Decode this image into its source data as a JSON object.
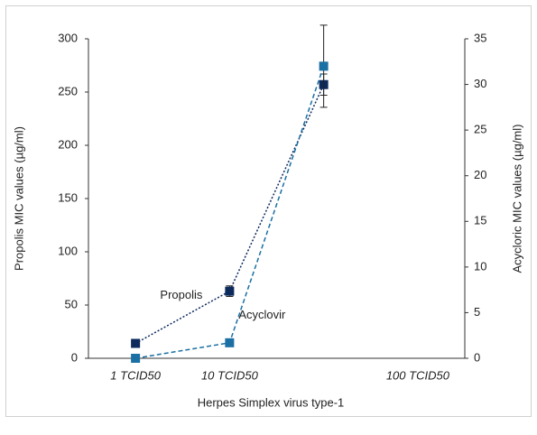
{
  "chart_data": {
    "type": "line",
    "x_label": "Herpes Simplex virus type-1",
    "y_label": "Propolis MIC values (µg/ml)",
    "y2_label": "Acycloric MIC values (µg/ml)",
    "categories": [
      "1 TCID50",
      "10 TCID50",
      null,
      "100 TCID50"
    ],
    "series": [
      {
        "name": "Propolis",
        "color": "#0d2a5c",
        "line_style": "dotted",
        "axis": "y",
        "values": [
          14,
          63,
          257,
          null
        ],
        "errors": [
          null,
          5,
          10,
          null
        ]
      },
      {
        "name": "Acyclovir",
        "color": "#1a6fa3",
        "line_style": "dashed",
        "axis": "y2",
        "values": [
          0,
          1.7,
          32,
          null
        ],
        "errors": [
          null,
          null,
          4.5,
          null
        ]
      }
    ],
    "ylim": [
      0,
      300
    ],
    "yticks": [
      0,
      50,
      100,
      150,
      200,
      250,
      300
    ],
    "y2lim": [
      0,
      35
    ],
    "y2ticks": [
      0,
      5,
      10,
      15,
      20,
      25,
      30,
      35
    ],
    "grid": false
  }
}
